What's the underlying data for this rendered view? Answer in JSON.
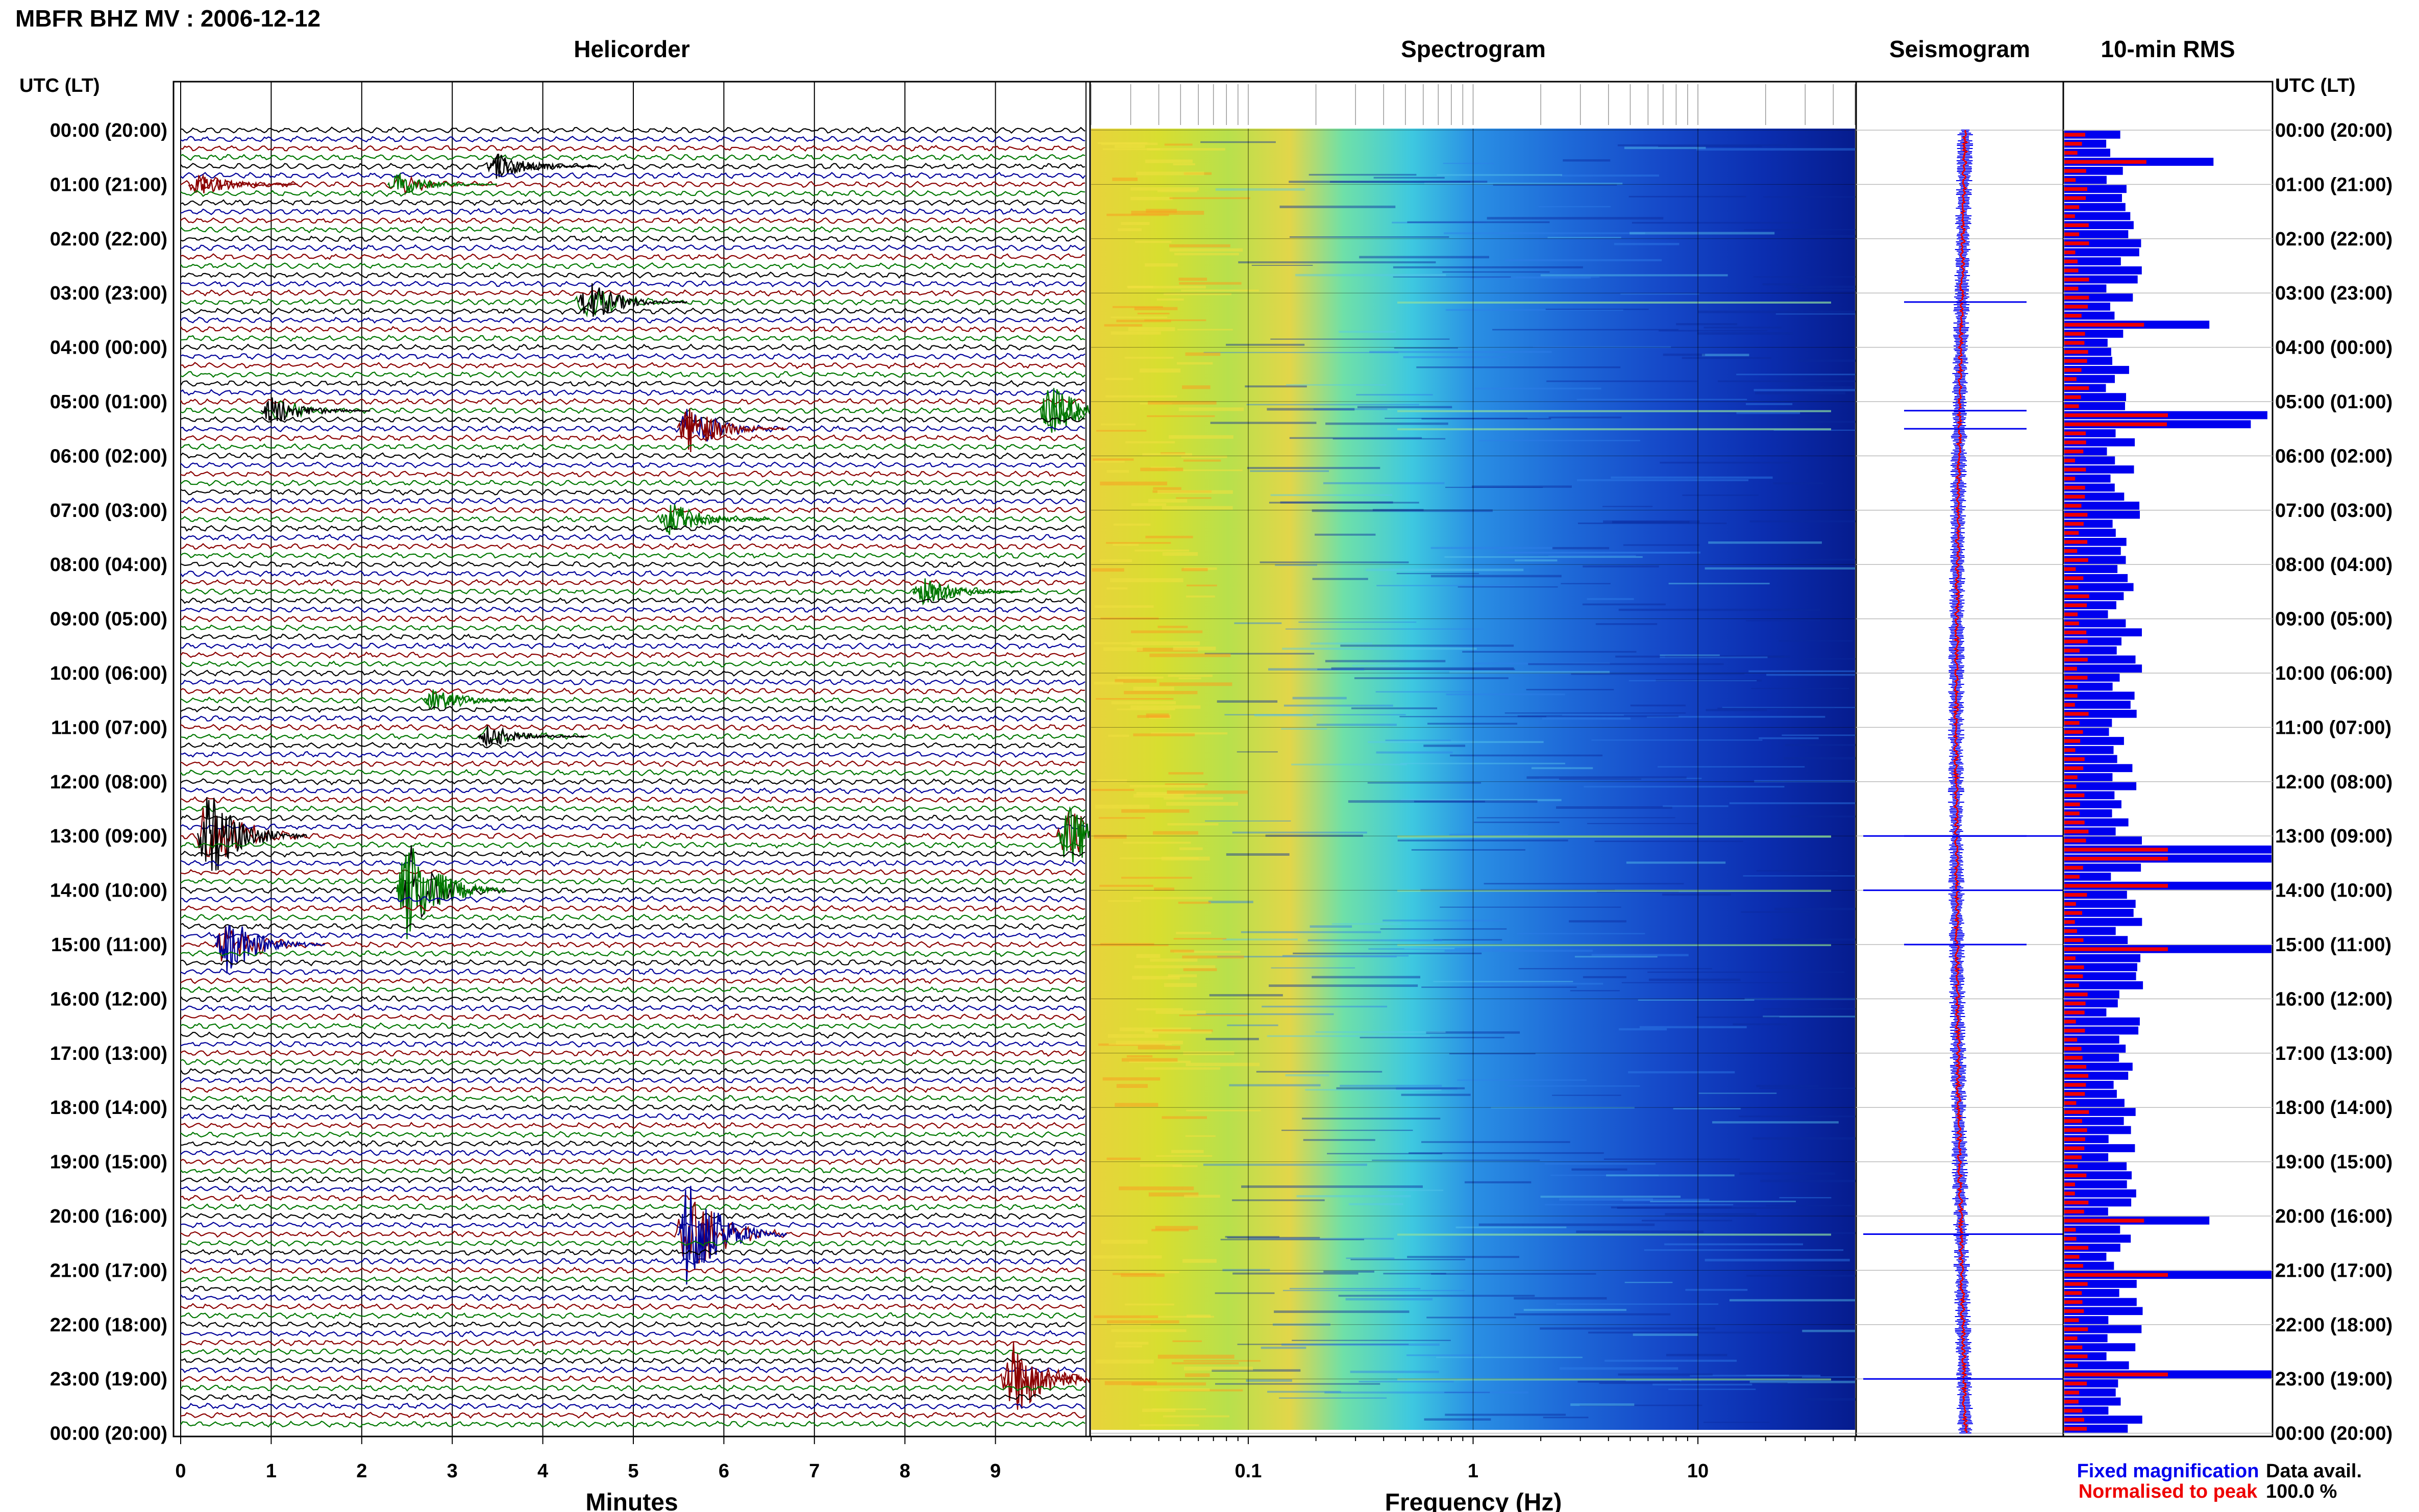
{
  "title": "MBFR BHZ MV : 2006-12-12",
  "panels": {
    "helicorder": "Helicorder",
    "spectrogram": "Spectrogram",
    "seismogram": "Seismogram",
    "rms": "10-min RMS"
  },
  "time_axis_label": "UTC (LT)",
  "time_ticks": [
    "00:00 (20:00)",
    "01:00 (21:00)",
    "02:00 (22:00)",
    "03:00 (23:00)",
    "04:00 (00:00)",
    "05:00 (01:00)",
    "06:00 (02:00)",
    "07:00 (03:00)",
    "08:00 (04:00)",
    "09:00 (05:00)",
    "10:00 (06:00)",
    "11:00 (07:00)",
    "12:00 (08:00)",
    "13:00 (09:00)",
    "14:00 (10:00)",
    "15:00 (11:00)",
    "16:00 (12:00)",
    "17:00 (13:00)",
    "18:00 (14:00)",
    "19:00 (15:00)",
    "20:00 (16:00)",
    "21:00 (17:00)",
    "22:00 (18:00)",
    "23:00 (19:00)",
    "00:00 (20:00)"
  ],
  "helicorder_xlabel": "Minutes",
  "helicorder_xticks": [
    "0",
    "1",
    "2",
    "3",
    "4",
    "5",
    "6",
    "7",
    "8",
    "9"
  ],
  "spectrogram_xlabel": "Frequency (Hz)",
  "spectrogram_xticks": [
    "0.1",
    "1",
    "10"
  ],
  "legend": {
    "fixed": "Fixed magnification",
    "normalised": "Normalised to peak",
    "fixed_color": "#0000ee",
    "normalised_color": "#ee0000"
  },
  "availability": {
    "label": "Data avail.",
    "value": "100.0 %"
  },
  "colors": {
    "trace_cycle": [
      "#000000",
      "#000099",
      "#8b0000",
      "#007700"
    ],
    "rms_fixed": "#0000ee",
    "rms_normalised": "#ee0000",
    "spectrogram_colormap": "jet"
  },
  "chart_data": [
    {
      "type": "line",
      "title": "Helicorder",
      "xlabel": "Minutes",
      "xlim": [
        0,
        10
      ],
      "ylim": [
        "00:00",
        "24:00"
      ],
      "rows_per_hour": 6,
      "events": [
        {
          "time": "00:40",
          "minute": 3.5,
          "amp": 0.7,
          "color": "#000000"
        },
        {
          "time": "01:00",
          "minute": 0.2,
          "amp": 0.6,
          "color": "#8b0000"
        },
        {
          "time": "01:00",
          "minute": 2.4,
          "amp": 0.6,
          "color": "#007700"
        },
        {
          "time": "03:10",
          "minute": 4.5,
          "amp": 1.1,
          "color": "#000000"
        },
        {
          "time": "05:10",
          "minute": 1.0,
          "amp": 0.8,
          "color": "#000000"
        },
        {
          "time": "05:10",
          "minute": 9.6,
          "amp": 1.4,
          "color": "#007700"
        },
        {
          "time": "05:30",
          "minute": 5.6,
          "amp": 1.3,
          "color": "#8b0000"
        },
        {
          "time": "07:10",
          "minute": 5.4,
          "amp": 0.9,
          "color": "#007700"
        },
        {
          "time": "08:30",
          "minute": 8.2,
          "amp": 0.7,
          "color": "#007700"
        },
        {
          "time": "10:30",
          "minute": 2.8,
          "amp": 0.6,
          "color": "#007700"
        },
        {
          "time": "11:10",
          "minute": 3.4,
          "amp": 0.6,
          "color": "#000000"
        },
        {
          "time": "13:00",
          "minute": 0.3,
          "amp": 2.4,
          "color": "#000000"
        },
        {
          "time": "13:00",
          "minute": 9.8,
          "amp": 1.8,
          "color": "#007700"
        },
        {
          "time": "14:00",
          "minute": 2.5,
          "amp": 2.8,
          "color": "#007700"
        },
        {
          "time": "15:00",
          "minute": 0.5,
          "amp": 1.6,
          "color": "#000099"
        },
        {
          "time": "20:20",
          "minute": 5.6,
          "amp": 3.2,
          "color": "#000099"
        },
        {
          "time": "23:00",
          "minute": 9.2,
          "amp": 2.2,
          "color": "#8b0000"
        }
      ]
    },
    {
      "type": "heatmap",
      "title": "Spectrogram",
      "xlabel": "Frequency (Hz)",
      "xscale": "log",
      "xlim": [
        0.02,
        50
      ],
      "xticks": [
        0.1,
        1,
        10
      ],
      "ylim": [
        "00:00",
        "24:00"
      ],
      "colormap": "jet",
      "energy_profile": [
        {
          "freq": 0.02,
          "level": 0.86
        },
        {
          "freq": 0.04,
          "level": 0.84
        },
        {
          "freq": 0.08,
          "level": 0.72
        },
        {
          "freq": 0.15,
          "level": 0.76
        },
        {
          "freq": 0.3,
          "level": 0.62
        },
        {
          "freq": 0.6,
          "level": 0.48
        },
        {
          "freq": 1,
          "level": 0.36
        },
        {
          "freq": 3,
          "level": 0.28
        },
        {
          "freq": 10,
          "level": 0.22
        },
        {
          "freq": 30,
          "level": 0.14
        },
        {
          "freq": 50,
          "level": 0.08
        }
      ]
    },
    {
      "type": "line",
      "title": "Seismogram",
      "series": [
        {
          "name": "Fixed magnification",
          "color": "#0000ee"
        },
        {
          "name": "Normalised to peak",
          "color": "#ee0000"
        }
      ],
      "ylim": [
        "00:00",
        "24:00"
      ]
    },
    {
      "type": "bar",
      "title": "10-min RMS",
      "orientation": "horizontal",
      "ylim": [
        "00:00",
        "24:00"
      ],
      "bins_per_hour": 6,
      "series": [
        {
          "name": "Fixed magnification",
          "color": "#0000ee"
        },
        {
          "name": "Normalised to peak",
          "color": "#ee0000"
        }
      ],
      "spikes": [
        {
          "time": "00:30",
          "value": 0.72
        },
        {
          "time": "03:30",
          "value": 0.7
        },
        {
          "time": "05:10",
          "value": 0.98
        },
        {
          "time": "05:20",
          "value": 0.9
        },
        {
          "time": "13:10",
          "value": 1.0
        },
        {
          "time": "13:20",
          "value": 1.0
        },
        {
          "time": "13:50",
          "value": 1.0
        },
        {
          "time": "15:00",
          "value": 1.0
        },
        {
          "time": "20:00",
          "value": 0.7
        },
        {
          "time": "21:00",
          "value": 1.0
        },
        {
          "time": "22:50",
          "value": 1.0
        }
      ]
    }
  ]
}
